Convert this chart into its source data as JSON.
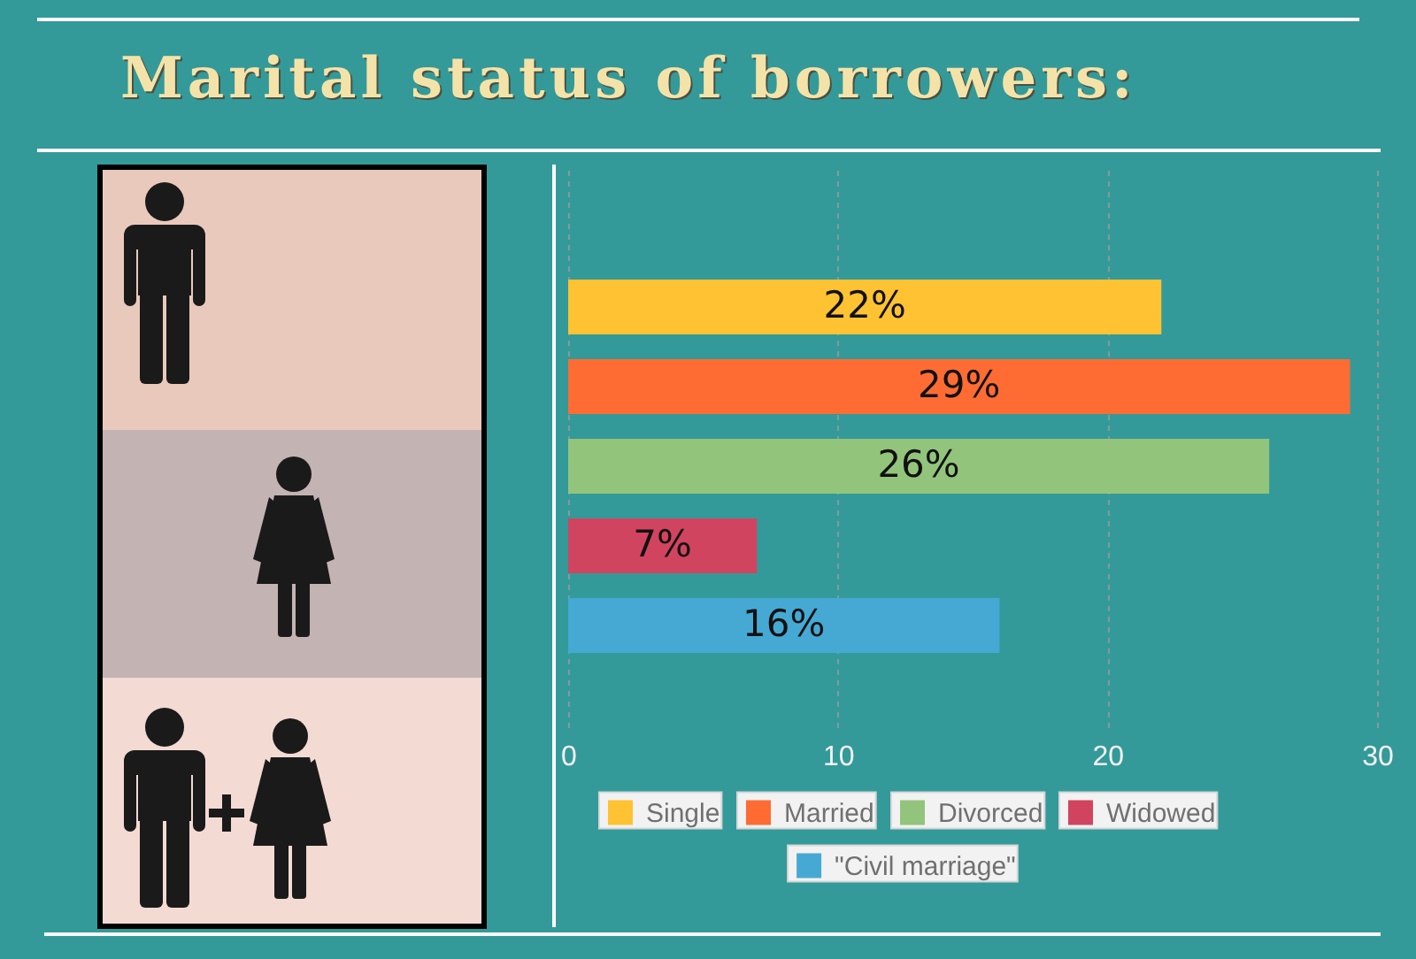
{
  "chart_data": {
    "type": "bar",
    "orientation": "horizontal",
    "title": "Marital status of borrowers:",
    "categories": [
      null
    ],
    "series": [
      {
        "name": "Single",
        "color": "#fec232",
        "values": [
          22
        ],
        "value_labels": [
          "22%"
        ]
      },
      {
        "name": "Married",
        "color": "#fe6c33",
        "values": [
          29
        ],
        "value_labels": [
          "29%"
        ]
      },
      {
        "name": "Divorced",
        "color": "#93c47c",
        "values": [
          26
        ],
        "value_labels": [
          "26%"
        ]
      },
      {
        "name": "Widowed",
        "color": "#d1445f",
        "values": [
          7
        ],
        "value_labels": [
          "7%"
        ]
      },
      {
        "name": "\"Civil marriage\"",
        "color": "#45a9d4",
        "values": [
          16
        ],
        "value_labels": [
          "16%"
        ]
      }
    ],
    "xlim": [
      0,
      30
    ],
    "xticks": [
      0,
      10,
      20,
      30
    ],
    "grid": "x",
    "legend": "bottom"
  }
}
